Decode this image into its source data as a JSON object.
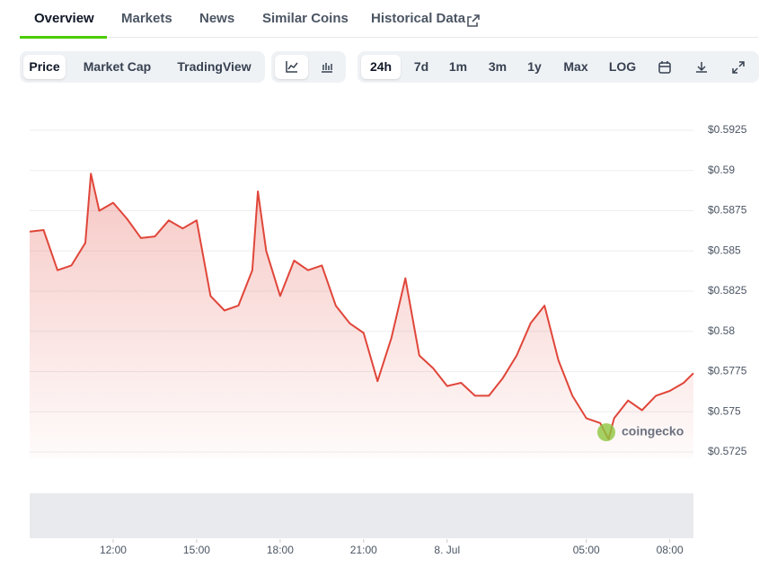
{
  "nav": {
    "tabs": [
      "Overview",
      "Markets",
      "News",
      "Similar Coins",
      "Historical Data"
    ],
    "active": 0
  },
  "toolbar": {
    "views": [
      "Price",
      "Market Cap",
      "TradingView"
    ],
    "ranges": [
      "24h",
      "7d",
      "1m",
      "3m",
      "1y",
      "Max",
      "LOG"
    ]
  },
  "watermark": "coingecko",
  "chart_data": {
    "type": "line",
    "x": [
      9,
      9.5,
      10,
      10.5,
      11,
      11.2,
      11.5,
      12,
      12.5,
      13,
      13.5,
      14,
      14.5,
      15,
      15.5,
      16,
      16.5,
      17,
      17.2,
      17.5,
      18,
      18.5,
      19,
      19.5,
      20,
      20.5,
      21,
      21.5,
      22,
      22.5,
      23,
      23.5,
      24,
      24.5,
      25,
      25.5,
      26,
      26.5,
      27,
      27.5,
      28,
      28.5,
      29,
      29.5,
      29.8,
      30,
      30.5,
      31,
      31.5,
      32,
      32.5,
      32.85
    ],
    "series": [
      {
        "name": "Price",
        "color": "#e0463a",
        "values": [
          0.5862,
          0.5863,
          0.5838,
          0.5841,
          0.5855,
          0.5898,
          0.5875,
          0.588,
          0.587,
          0.5858,
          0.5859,
          0.5869,
          0.5864,
          0.5869,
          0.5822,
          0.5813,
          0.5816,
          0.5838,
          0.5887,
          0.585,
          0.5822,
          0.5844,
          0.5838,
          0.5841,
          0.5816,
          0.5805,
          0.5799,
          0.5769,
          0.5796,
          0.5833,
          0.5785,
          0.5777,
          0.5766,
          0.5768,
          0.576,
          0.576,
          0.5771,
          0.5785,
          0.5805,
          0.5816,
          0.5782,
          0.576,
          0.5746,
          0.5743,
          0.5733,
          0.5746,
          0.5757,
          0.5751,
          0.576,
          0.5763,
          0.5768,
          0.5774
        ]
      }
    ],
    "xlim": [
      9,
      32.85
    ],
    "xticks": [
      {
        "value": 12,
        "label": "12:00"
      },
      {
        "value": 15,
        "label": "15:00"
      },
      {
        "value": 18,
        "label": "18:00"
      },
      {
        "value": 21,
        "label": "21:00"
      },
      {
        "value": 24,
        "label": "8. Jul"
      },
      {
        "value": 29,
        "label": "05:00"
      },
      {
        "value": 32,
        "label": "08:00"
      }
    ],
    "ylim": [
      0.5725,
      0.5925
    ],
    "yticks": [
      {
        "value": 0.5725,
        "label": "$0.5725"
      },
      {
        "value": 0.575,
        "label": "$0.575"
      },
      {
        "value": 0.5775,
        "label": "$0.5775"
      },
      {
        "value": 0.58,
        "label": "$0.58"
      },
      {
        "value": 0.5825,
        "label": "$0.5825"
      },
      {
        "value": 0.585,
        "label": "$0.585"
      },
      {
        "value": 0.5875,
        "label": "$0.5875"
      },
      {
        "value": 0.59,
        "label": "$0.59"
      },
      {
        "value": 0.5925,
        "label": "$0.5925"
      }
    ],
    "grid": true
  }
}
